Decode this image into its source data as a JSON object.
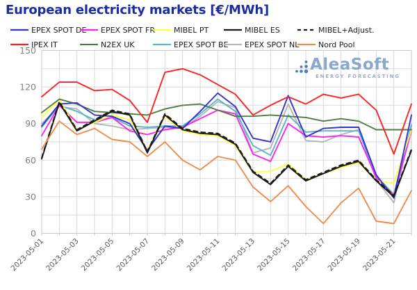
{
  "title": "European electricity markets [€/MWh]",
  "watermark": {
    "name": "AleaSoft",
    "tagline": "ENERGY FORECASTING"
  },
  "colors": {
    "title": "#1b2da0",
    "grid": "#d9d9d9",
    "plot_border": "#c9c9c9",
    "y_tick_label": "#808080",
    "x_tick_label": "#595959",
    "legend_label": "#1a1a1a",
    "watermark_text": "#7fa1c9",
    "watermark_tagline": "#92a8bf",
    "watermark_dots": "#3f6fb5"
  },
  "chart_data": {
    "type": "line",
    "x": [
      "2023-05-01",
      "2023-05-02",
      "2023-05-03",
      "2023-05-04",
      "2023-05-05",
      "2023-05-06",
      "2023-05-07",
      "2023-05-08",
      "2023-05-09",
      "2023-05-10",
      "2023-05-11",
      "2023-05-12",
      "2023-05-13",
      "2023-05-14",
      "2023-05-15",
      "2023-05-16",
      "2023-05-17",
      "2023-05-18",
      "2023-05-19",
      "2023-05-20",
      "2023-05-21",
      "2023-05-22"
    ],
    "x_tick_step": 2,
    "y_ticks": [
      0,
      30,
      60,
      90,
      120,
      150
    ],
    "y_minor_step": 15,
    "ylim": [
      0,
      150
    ],
    "grid": true,
    "legend_position": "top",
    "series": [
      {
        "name": "EPEX SPOT DE",
        "color": "#3333cc",
        "dash": false,
        "values": [
          88,
          106,
          107,
          97,
          96,
          90,
          68,
          88,
          86,
          100,
          115,
          104,
          78,
          75,
          113,
          79,
          86,
          87,
          87,
          48,
          29,
          97
        ]
      },
      {
        "name": "EPEX SPOT FR",
        "color": "#ff22ee",
        "dash": false,
        "values": [
          80,
          105,
          91,
          91,
          95,
          84,
          81,
          85,
          87,
          94,
          101,
          98,
          65,
          59,
          90,
          80,
          79,
          80,
          79,
          46,
          31,
          84
        ]
      },
      {
        "name": "MIBEL PT",
        "color": "#ffff42",
        "dash": false,
        "values": [
          95,
          110,
          85,
          91,
          97,
          93,
          68,
          96,
          84,
          81,
          80,
          72,
          50,
          51,
          57,
          44,
          49,
          54,
          58,
          43,
          41,
          85
        ]
      },
      {
        "name": "MIBEL ES",
        "color": "#1a1a1a",
        "dash": false,
        "values": [
          61,
          107,
          84,
          92,
          100,
          97,
          66,
          97,
          85,
          82,
          81,
          73,
          50,
          40,
          55,
          43,
          49,
          55,
          59,
          43,
          30,
          68
        ]
      },
      {
        "name": "MIBEL+Adjust.",
        "color": "#1a1a1a",
        "dash": true,
        "values": [
          62,
          108,
          85,
          93,
          101,
          98,
          67,
          98,
          86,
          83,
          82,
          74,
          51,
          41,
          56,
          44,
          50,
          56,
          60,
          44,
          31,
          69
        ]
      },
      {
        "name": "IPEX IT",
        "color": "#fc2222",
        "dash": false,
        "values": [
          112,
          124,
          124,
          117,
          118,
          109,
          91,
          132,
          135,
          130,
          122,
          114,
          97,
          105,
          112,
          106,
          114,
          111,
          114,
          101,
          65,
          106
        ]
      },
      {
        "name": "N2EX UK",
        "color": "#507d3e",
        "dash": false,
        "values": [
          99,
          110,
          106,
          100,
          99,
          98,
          97,
          102,
          105,
          106,
          101,
          96,
          96,
          97,
          96,
          95,
          92,
          94,
          92,
          85,
          85,
          85
        ]
      },
      {
        "name": "EPEX SPOT BE",
        "color": "#55b7c8",
        "dash": false,
        "values": [
          87,
          105,
          100,
          93,
          95,
          88,
          87,
          88,
          88,
          98,
          110,
          100,
          72,
          64,
          97,
          83,
          84,
          84,
          84,
          47,
          32,
          89
        ]
      },
      {
        "name": "EPEX SPOT NL",
        "color": "#b5b5b5",
        "dash": false,
        "values": [
          90,
          104,
          102,
          90,
          88,
          85,
          86,
          87,
          86,
          96,
          108,
          103,
          66,
          70,
          106,
          76,
          75,
          81,
          85,
          44,
          25,
          88
        ]
      },
      {
        "name": "Nord Pool",
        "color": "#ee8c4a",
        "dash": false,
        "values": [
          69,
          92,
          81,
          86,
          77,
          75,
          63,
          75,
          60,
          52,
          63,
          60,
          38,
          26,
          39,
          22,
          8,
          25,
          37,
          10,
          8,
          35
        ]
      }
    ],
    "legend_rows": [
      [
        0,
        1,
        2,
        3,
        4
      ],
      [
        5,
        6,
        7,
        8,
        9
      ]
    ]
  }
}
